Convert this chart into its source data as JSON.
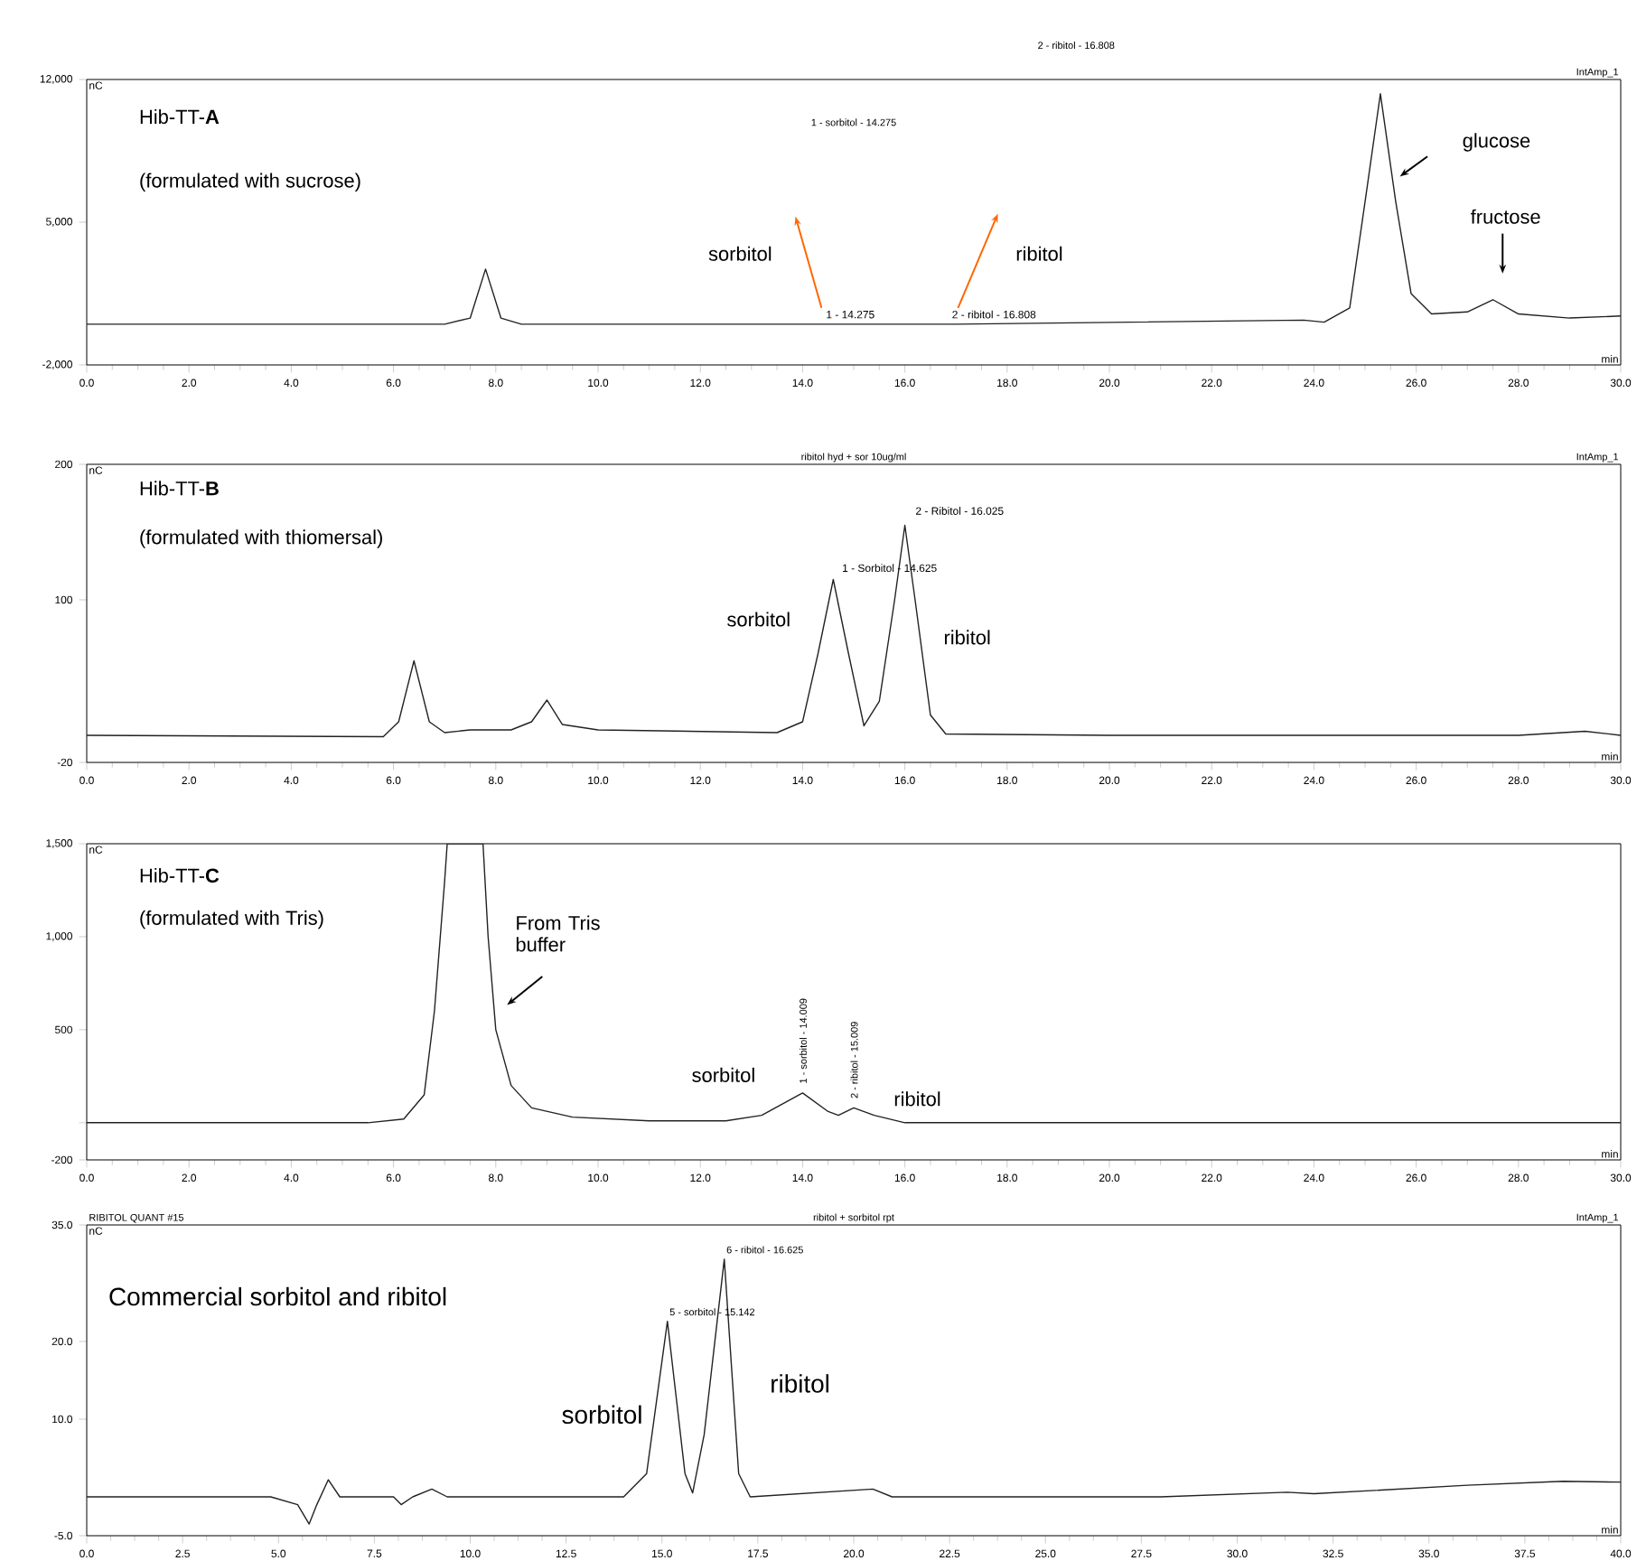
{
  "chart_data": [
    {
      "type": "line",
      "title": "Hib-TT-**A**",
      "subtitle": "(formulated with sucrose)",
      "xlabel": "min",
      "ylabel": "nC",
      "xlim": [
        0,
        30
      ],
      "ylim": [
        -2000,
        12000
      ],
      "xticks": [
        {
          "value": 0,
          "label": "0.0"
        },
        {
          "value": 2,
          "label": "2.0"
        },
        {
          "value": 4,
          "label": "4.0"
        },
        {
          "value": 6,
          "label": "6.0"
        },
        {
          "value": 8,
          "label": "8.0"
        },
        {
          "value": 10,
          "label": "10.0"
        },
        {
          "value": 12,
          "label": "12.0"
        },
        {
          "value": 14,
          "label": "14.0"
        },
        {
          "value": 16,
          "label": "16.0"
        },
        {
          "value": 18,
          "label": "18.0"
        },
        {
          "value": 20,
          "label": "20.0"
        },
        {
          "value": 22,
          "label": "22.0"
        },
        {
          "value": 24,
          "label": "24.0"
        },
        {
          "value": 26,
          "label": "26.0"
        },
        {
          "value": 28,
          "label": "28.0"
        },
        {
          "value": 30,
          "label": "30.0"
        }
      ],
      "yticks": [
        {
          "value": -2000,
          "label": "-2,000"
        },
        {
          "value": 5000,
          "label": "5,000"
        },
        {
          "value": 12000,
          "label": "12,000"
        }
      ],
      "series": [
        {
          "color": "#222222",
          "x": [
            0,
            7.0,
            7.5,
            7.8,
            8.1,
            8.5,
            14,
            17,
            23.8,
            24.2,
            24.7,
            25.0,
            25.3,
            25.6,
            25.9,
            26.3,
            27.0,
            27.5,
            28.0,
            29,
            30
          ],
          "values": [
            0,
            0,
            300,
            2700,
            300,
            0,
            0,
            0,
            200,
            100,
            800,
            6000,
            11300,
            6000,
            1500,
            500,
            600,
            1200,
            500,
            300,
            400
          ]
        }
      ],
      "annotations": [
        "IntAmp_1",
        "1 - sorbitol - 14.275",
        "2 - ribitol - 16.808",
        "sorbitol",
        "ribitol",
        {
          "text": "1 - 14.275",
          "x": 14.275,
          "y": 0
        },
        {
          "text": "2 - ribitol - 16.808",
          "x": 16.808,
          "y": 0
        },
        "glucose",
        "fructose"
      ]
    },
    {
      "type": "line",
      "title": "Hib-TT-**B**",
      "subtitle": "(formulated with thiomersal)",
      "xlabel": "min",
      "ylabel": "nC",
      "xlim": [
        0,
        30
      ],
      "ylim": [
        -20,
        200
      ],
      "xticks": [
        {
          "value": 0,
          "label": "0.0"
        },
        {
          "value": 2,
          "label": "2.0"
        },
        {
          "value": 4,
          "label": "4.0"
        },
        {
          "value": 6,
          "label": "6.0"
        },
        {
          "value": 8,
          "label": "8.0"
        },
        {
          "value": 10,
          "label": "10.0"
        },
        {
          "value": 12,
          "label": "12.0"
        },
        {
          "value": 14,
          "label": "14.0"
        },
        {
          "value": 16,
          "label": "16.0"
        },
        {
          "value": 18,
          "label": "18.0"
        },
        {
          "value": 20,
          "label": "20.0"
        },
        {
          "value": 22,
          "label": "22.0"
        },
        {
          "value": 24,
          "label": "24.0"
        },
        {
          "value": 26,
          "label": "26.0"
        },
        {
          "value": 28,
          "label": "28.0"
        },
        {
          "value": 30,
          "label": "30.0"
        }
      ],
      "yticks": [
        -20,
        100,
        200
      ],
      "series": [
        {
          "color": "#222222",
          "x": [
            0,
            5.8,
            6.1,
            6.4,
            6.7,
            7.0,
            7.5,
            8.3,
            8.7,
            9.0,
            9.3,
            10,
            13.5,
            14.0,
            14.3,
            14.6,
            14.9,
            15.2,
            15.5,
            15.8,
            16.0,
            16.2,
            16.5,
            16.8,
            20,
            28,
            29.3,
            30
          ],
          "values": [
            0,
            -1,
            10,
            55,
            10,
            2,
            4,
            4,
            10,
            26,
            8,
            4,
            2,
            10,
            60,
            115,
            60,
            7,
            25,
            100,
            155,
            100,
            15,
            1,
            0,
            0,
            3,
            0
          ]
        }
      ],
      "annotations": [
        "ribitol  hyd + sor 10ug/ml",
        "IntAmp_1",
        {
          "text": "1 - Sorbitol - 14.625",
          "x": 14.625,
          "y": 115
        },
        {
          "text": "2 - Ribitol - 16.025",
          "x": 16.025,
          "y": 155
        },
        {
          "text": "sorbitol",
          "x": 14.625,
          "y": 115
        },
        "ribitol"
      ]
    },
    {
      "type": "line",
      "title": "Hib-TT-**C**",
      "subtitle": "(formulated with Tris)",
      "xlabel": "min",
      "ylabel": "nC",
      "xlim": [
        0,
        30
      ],
      "ylim": [
        -200,
        1500
      ],
      "xticks": [
        {
          "value": 0,
          "label": "0.0"
        },
        {
          "value": 2,
          "label": "2.0"
        },
        {
          "value": 4,
          "label": "4.0"
        },
        {
          "value": 6,
          "label": "6.0"
        },
        {
          "value": 8,
          "label": "8.0"
        },
        {
          "value": 10,
          "label": "10.0"
        },
        {
          "value": 12,
          "label": "12.0"
        },
        {
          "value": 14,
          "label": "14.0"
        },
        {
          "value": 16,
          "label": "16.0"
        },
        {
          "value": 18,
          "label": "18.0"
        },
        {
          "value": 20,
          "label": "20.0"
        },
        {
          "value": 22,
          "label": "22.0"
        },
        {
          "value": 24,
          "label": "24.0"
        },
        {
          "value": 26,
          "label": "26.0"
        },
        {
          "value": 28,
          "label": "28.0"
        },
        {
          "value": 30,
          "label": "30.0"
        }
      ],
      "yticks": [
        -200,
        {
          "value": 0,
          "label": null
        },
        500,
        {
          "value": 1000,
          "label": "1,000"
        },
        {
          "value": 1500,
          "label": "1,500"
        }
      ],
      "series": [
        {
          "color": "#222222",
          "x": [
            0,
            5.5,
            6.2,
            6.6,
            6.8,
            7.0,
            7.05,
            7.75,
            7.85,
            8.0,
            8.3,
            8.7,
            9.5,
            11,
            12.5,
            13.2,
            14.0,
            14.5,
            14.7,
            15.0,
            15.4,
            16,
            30
          ],
          "values": [
            0,
            0,
            20,
            150,
            600,
            1300,
            1500,
            1500,
            1000,
            500,
            200,
            80,
            30,
            10,
            10,
            40,
            160,
            60,
            40,
            80,
            40,
            0,
            0
          ]
        }
      ],
      "annotations": [
        "From Tris buffer",
        {
          "text": "1 - sorbitol - 14.009",
          "x": 14.009,
          "y": 160
        },
        {
          "text": "2 - ribitol - 15.009",
          "x": 15.009,
          "y": 80
        },
        {
          "text": "sorbitol",
          "x": 14.009,
          "y": 160
        },
        {
          "text": "ribitol",
          "x": 15.009,
          "y": 80
        }
      ]
    },
    {
      "type": "line",
      "title": "Commercial sorbitol and ribitol",
      "xlabel": "min",
      "ylabel": "nC",
      "xlim": [
        0,
        40
      ],
      "ylim": [
        -5,
        35
      ],
      "xticks": [
        {
          "value": 0,
          "label": "0.0"
        },
        2.5,
        {
          "value": 5,
          "label": "5.0"
        },
        7.5,
        {
          "value": 10,
          "label": "10.0"
        },
        12.5,
        {
          "value": 15,
          "label": "15.0"
        },
        17.5,
        {
          "value": 20,
          "label": "20.0"
        },
        22.5,
        {
          "value": 25,
          "label": "25.0"
        },
        27.5,
        {
          "value": 30,
          "label": "30.0"
        },
        32.5,
        {
          "value": 35,
          "label": "35.0"
        },
        37.5,
        {
          "value": 40,
          "label": "40.0"
        }
      ],
      "yticks": [
        {
          "value": -5,
          "label": "-5.0"
        },
        {
          "value": 10,
          "label": "10.0"
        },
        {
          "value": 20,
          "label": "20.0"
        },
        {
          "value": 35,
          "label": "35.0"
        }
      ],
      "series": [
        {
          "color": "#222222",
          "x": [
            0,
            4.8,
            5.5,
            5.8,
            6.0,
            6.3,
            6.6,
            7,
            8,
            8.2,
            8.5,
            9.0,
            9.4,
            14,
            14.6,
            15.142,
            15.6,
            15.8,
            16.1,
            16.625,
            17.0,
            17.3,
            20.5,
            21,
            28,
            31.3,
            32,
            36,
            38.5,
            40
          ],
          "values": [
            0,
            0,
            -1,
            -3.5,
            -1,
            2.2,
            0,
            0,
            0,
            -1,
            0,
            1,
            0,
            0,
            3,
            22.6,
            3,
            0.5,
            8,
            30.6,
            3,
            0,
            1,
            0,
            0,
            0.6,
            0.4,
            1.5,
            2,
            1.9
          ]
        }
      ],
      "annotations": [
        "RIBITOL QUANT #15",
        "ribitol + sorbitol rpt",
        "IntAmp_1",
        {
          "text": "5 - sorbitol - 15.142",
          "x": 15.142,
          "y": 22.6
        },
        {
          "text": "6 - ribitol - 16.625",
          "x": 16.625,
          "y": 30.6
        },
        "sorbitol",
        "ribitol"
      ]
    }
  ]
}
